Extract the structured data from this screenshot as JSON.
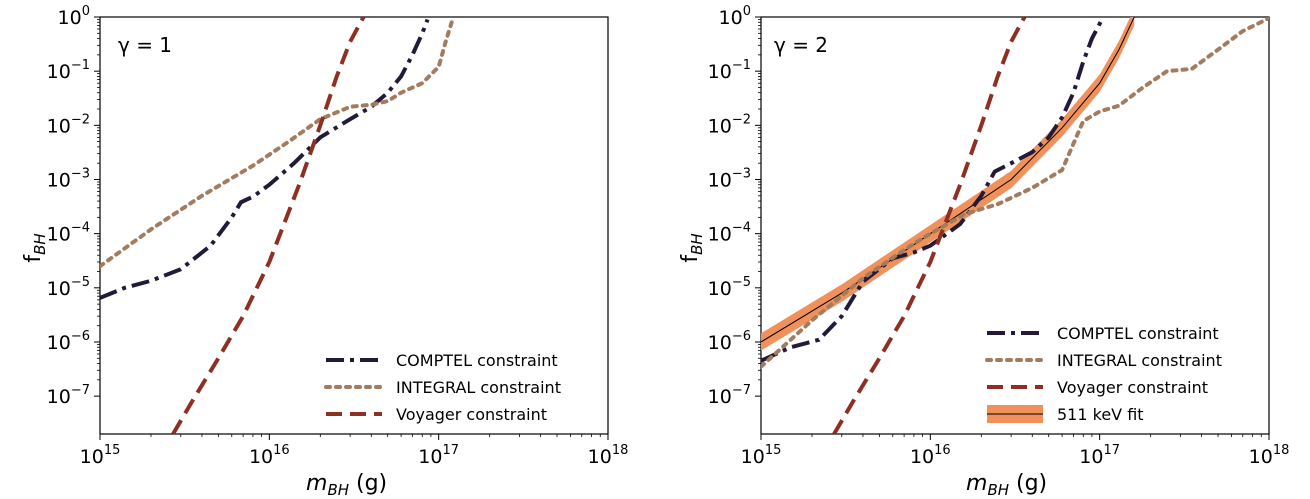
{
  "chart_data": [
    {
      "type": "line",
      "panel_label": "γ = 1",
      "xlabel": "m_BH (g)",
      "ylabel": "f_BH",
      "x_scale": "log",
      "y_scale": "log",
      "xlim": [
        1000000000000000.0,
        1e+18
      ],
      "ylim": [
        2e-08,
        1
      ],
      "x_ticks": [
        {
          "base": "10",
          "exp": "15",
          "value": 1000000000000000.0
        },
        {
          "base": "10",
          "exp": "16",
          "value": 1e+16
        },
        {
          "base": "10",
          "exp": "17",
          "value": 1e+17
        },
        {
          "base": "10",
          "exp": "18",
          "value": 1e+18
        }
      ],
      "y_ticks": [
        {
          "base": "10",
          "exp": "0",
          "value": 1
        },
        {
          "base": "10",
          "exp": "−1",
          "value": 0.1
        },
        {
          "base": "10",
          "exp": "−2",
          "value": 0.01
        },
        {
          "base": "10",
          "exp": "−3",
          "value": 0.001
        },
        {
          "base": "10",
          "exp": "−4",
          "value": 0.0001
        },
        {
          "base": "10",
          "exp": "−5",
          "value": 1e-05
        },
        {
          "base": "10",
          "exp": "−6",
          "value": 1e-06
        },
        {
          "base": "10",
          "exp": "−7",
          "value": 1e-07
        }
      ],
      "legend_position": "lower-right",
      "series": [
        {
          "name": "COMPTEL constraint",
          "color": "#231a3a",
          "style": "dashdot",
          "points": [
            [
              1000000000000000.0,
              6.5e-06
            ],
            [
              1400000000000000.0,
              1e-05
            ],
            [
              2000000000000000.0,
              1.35e-05
            ],
            [
              3000000000000000.0,
              2.2e-05
            ],
            [
              4500000000000000.0,
              6e-05
            ],
            [
              6000000000000000.0,
              0.0002
            ],
            [
              6800000000000000.0,
              0.00038
            ],
            [
              8000000000000000.0,
              0.00048
            ],
            [
              1e+16,
              0.0008
            ],
            [
              1.4e+16,
              0.002
            ],
            [
              2e+16,
              0.006
            ],
            [
              3e+16,
              0.013
            ],
            [
              4e+16,
              0.022
            ],
            [
              5e+16,
              0.04
            ],
            [
              6e+16,
              0.08
            ],
            [
              7e+16,
              0.2
            ],
            [
              8e+16,
              0.5
            ],
            [
              8.6e+16,
              0.9
            ]
          ]
        },
        {
          "name": "INTEGRAL constraint",
          "color": "#a37b5e",
          "style": "dotted",
          "points": [
            [
              1000000000000000.0,
              2.5e-05
            ],
            [
              2000000000000000.0,
              0.00012
            ],
            [
              4000000000000000.0,
              0.0005
            ],
            [
              8000000000000000.0,
              0.0018
            ],
            [
              1.3e+16,
              0.005
            ],
            [
              2e+16,
              0.013
            ],
            [
              3e+16,
              0.022
            ],
            [
              4e+16,
              0.024
            ],
            [
              5e+16,
              0.028
            ],
            [
              6e+16,
              0.04
            ],
            [
              8e+16,
              0.06
            ],
            [
              1e+17,
              0.12
            ],
            [
              1.1e+17,
              0.35
            ],
            [
              1.22e+17,
              1
            ]
          ]
        },
        {
          "name": "Voyager constraint",
          "color": "#8e2f22",
          "style": "dashed",
          "points": [
            [
              2700000000000000.0,
              2e-08
            ],
            [
              3500000000000000.0,
              8e-08
            ],
            [
              5000000000000000.0,
              5e-07
            ],
            [
              7000000000000000.0,
              3e-06
            ],
            [
              1e+16,
              3e-05
            ],
            [
              1.5e+16,
              0.0008
            ],
            [
              2e+16,
              0.01
            ],
            [
              2.5e+16,
              0.08
            ],
            [
              3e+16,
              0.35
            ],
            [
              3.6e+16,
              1
            ]
          ]
        }
      ]
    },
    {
      "type": "line",
      "panel_label": "γ = 2",
      "xlabel": "m_BH (g)",
      "ylabel": "f_BH",
      "x_scale": "log",
      "y_scale": "log",
      "xlim": [
        1000000000000000.0,
        1e+18
      ],
      "ylim": [
        2e-08,
        1
      ],
      "x_ticks": [
        {
          "base": "10",
          "exp": "15",
          "value": 1000000000000000.0
        },
        {
          "base": "10",
          "exp": "16",
          "value": 1e+16
        },
        {
          "base": "10",
          "exp": "17",
          "value": 1e+17
        },
        {
          "base": "10",
          "exp": "18",
          "value": 1e+18
        }
      ],
      "y_ticks": [
        {
          "base": "10",
          "exp": "0",
          "value": 1
        },
        {
          "base": "10",
          "exp": "−1",
          "value": 0.1
        },
        {
          "base": "10",
          "exp": "−2",
          "value": 0.01
        },
        {
          "base": "10",
          "exp": "−3",
          "value": 0.001
        },
        {
          "base": "10",
          "exp": "−4",
          "value": 0.0001
        },
        {
          "base": "10",
          "exp": "−5",
          "value": 1e-05
        },
        {
          "base": "10",
          "exp": "−6",
          "value": 1e-06
        },
        {
          "base": "10",
          "exp": "−7",
          "value": 1e-07
        }
      ],
      "legend_position": "lower-right",
      "fit_band": {
        "name": "511 keV fit",
        "color": "#f0915c",
        "line_color": "#000000",
        "center": [
          [
            1000000000000000.0,
            1e-06
          ],
          [
            3000000000000000.0,
            8e-06
          ],
          [
            1e+16,
            0.0001
          ],
          [
            3e+16,
            0.001
          ],
          [
            6e+16,
            0.009
          ],
          [
            1e+17,
            0.06
          ],
          [
            1.3e+17,
            0.25
          ],
          [
            1.6e+17,
            1
          ]
        ],
        "width_decades": 0.32
      },
      "series": [
        {
          "name": "COMPTEL constraint",
          "color": "#231a3a",
          "style": "dashdot",
          "points": [
            [
              1000000000000000.0,
              4.5e-07
            ],
            [
              1500000000000000.0,
              8e-07
            ],
            [
              2200000000000000.0,
              1.1e-06
            ],
            [
              3000000000000000.0,
              3e-06
            ],
            [
              4000000000000000.0,
              1.3e-05
            ],
            [
              6000000000000000.0,
              3.5e-05
            ],
            [
              8000000000000000.0,
              4.5e-05
            ],
            [
              1e+16,
              6e-05
            ],
            [
              1.5e+16,
              0.00015
            ],
            [
              2e+16,
              0.0005
            ],
            [
              2.4e+16,
              0.0014
            ],
            [
              3e+16,
              0.002
            ],
            [
              4e+16,
              0.0032
            ],
            [
              5e+16,
              0.006
            ],
            [
              6e+16,
              0.014
            ],
            [
              7e+16,
              0.04
            ],
            [
              8e+16,
              0.15
            ],
            [
              9e+16,
              0.4
            ],
            [
              1.05e+17,
              1
            ]
          ]
        },
        {
          "name": "INTEGRAL constraint",
          "color": "#a37b5e",
          "style": "dotted",
          "points": [
            [
              1000000000000000.0,
              3.5e-07
            ],
            [
              2000000000000000.0,
              2.5e-06
            ],
            [
              4000000000000000.0,
              1.5e-05
            ],
            [
              7000000000000000.0,
              5e-05
            ],
            [
              1e+16,
              0.0001
            ],
            [
              1.6e+16,
              0.00023
            ],
            [
              2.5e+16,
              0.00035
            ],
            [
              4e+16,
              0.0007
            ],
            [
              6e+16,
              0.0015
            ],
            [
              8e+16,
              0.012
            ],
            [
              1e+17,
              0.018
            ],
            [
              1.3e+17,
              0.023
            ],
            [
              1.8e+17,
              0.05
            ],
            [
              2.5e+17,
              0.1
            ],
            [
              3.5e+17,
              0.11
            ],
            [
              5e+17,
              0.25
            ],
            [
              7e+17,
              0.55
            ],
            [
              1e+18,
              0.95
            ]
          ]
        },
        {
          "name": "Voyager constraint",
          "color": "#8e2f22",
          "style": "dashed",
          "points": [
            [
              2700000000000000.0,
              2e-08
            ],
            [
              3500000000000000.0,
              8e-08
            ],
            [
              5000000000000000.0,
              5e-07
            ],
            [
              7000000000000000.0,
              3e-06
            ],
            [
              1e+16,
              3e-05
            ],
            [
              1.5e+16,
              0.0008
            ],
            [
              2e+16,
              0.01
            ],
            [
              2.5e+16,
              0.08
            ],
            [
              3e+16,
              0.35
            ],
            [
              3.6e+16,
              1
            ]
          ]
        }
      ]
    }
  ]
}
